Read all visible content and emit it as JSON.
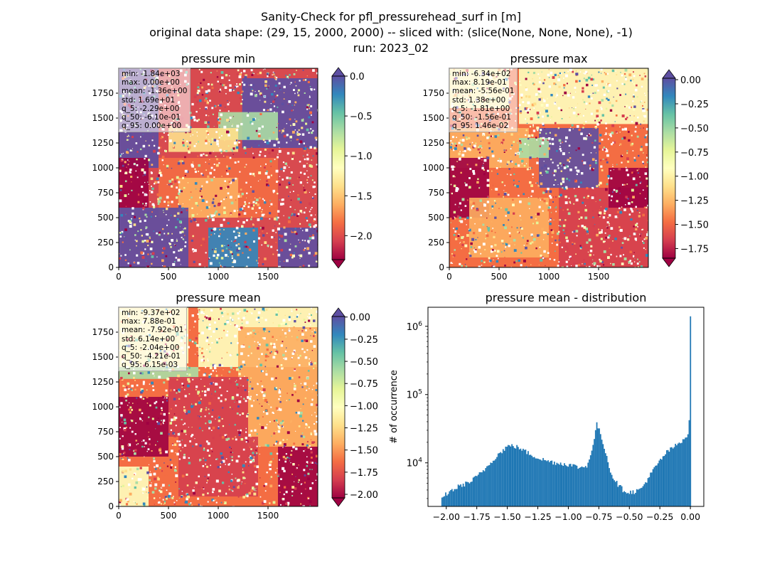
{
  "suptitle": {
    "line1": "Sanity-Check for pfl_pressurehead_surf in [m]",
    "line2": "original data shape: (29, 15, 2000, 2000) -- sliced with: (slice(None, None, None), -1)",
    "line3": "run: 2023_02"
  },
  "palette": {
    "spectral": [
      "#9e0142",
      "#d53e4f",
      "#f46d43",
      "#fdae61",
      "#fee08b",
      "#ffffbf",
      "#e6f598",
      "#abdda4",
      "#66c2a5",
      "#3288bd",
      "#5e4fa2"
    ],
    "hist_bar": "#1f77b4"
  },
  "panels": [
    {
      "title": "pressure min",
      "colorbar": {
        "ticks": [
          "0.0",
          "−0.5",
          "−1.0",
          "−1.5",
          "−2.0"
        ],
        "range": [
          -2.3,
          0.0
        ],
        "tick_values": [
          0.0,
          -0.5,
          -1.0,
          -1.5,
          -2.0
        ],
        "extend_top_color": "#5e4fa2",
        "extend_bottom_color": "#9e0142"
      },
      "stats": [
        "min: -1.84e+03",
        "max: 0.00e+00",
        "mean: -1.36e+00",
        "std: 1.69e+01",
        "q_5: -2.29e+00",
        "q_50: -6.10e-01",
        "q_95: 0.00e+00"
      ]
    },
    {
      "title": "pressure max",
      "colorbar": {
        "ticks": [
          "0.00",
          "−0.25",
          "−0.50",
          "−0.75",
          "−1.00",
          "−1.25",
          "−1.50",
          "−1.75"
        ],
        "range": [
          -1.85,
          0.015
        ],
        "tick_values": [
          0.0,
          -0.25,
          -0.5,
          -0.75,
          -1.0,
          -1.25,
          -1.5,
          -1.75
        ],
        "extend_top_color": "#5e4fa2",
        "extend_bottom_color": "#9e0142"
      },
      "stats": [
        "min: -6.34e+02",
        "max: 8.19e-01",
        "mean: -5.56e-01",
        "std: 1.38e+00",
        "q_5: -1.81e+00",
        "q_50: -1.56e-01",
        "q_95: 1.46e-02"
      ]
    },
    {
      "title": "pressure mean",
      "colorbar": {
        "ticks": [
          "0.00",
          "−0.25",
          "−0.50",
          "−0.75",
          "−1.00",
          "−1.25",
          "−1.50",
          "−1.75",
          "−2.00"
        ],
        "range": [
          -2.04,
          0.006
        ],
        "tick_values": [
          0.0,
          -0.25,
          -0.5,
          -0.75,
          -1.0,
          -1.25,
          -1.5,
          -1.75,
          -2.0
        ],
        "extend_top_color": "#5e4fa2",
        "extend_bottom_color": "#9e0142"
      },
      "stats": [
        "min: -9.37e+02",
        "max: 7.88e-01",
        "mean: -7.92e-01",
        "std: 6.14e+00",
        "q_5: -2.04e+00",
        "q_50: -4.21e-01",
        "q_95: 6.15e-03"
      ]
    }
  ],
  "map_axes": {
    "xticks": [
      "0",
      "500",
      "1000",
      "1500"
    ],
    "xtick_values": [
      0,
      500,
      1000,
      1500
    ],
    "yticks": [
      "0",
      "250",
      "500",
      "750",
      "1000",
      "1250",
      "1500",
      "1750"
    ],
    "ytick_values": [
      0,
      250,
      500,
      750,
      1000,
      1250,
      1500,
      1750
    ],
    "range": [
      0,
      2000
    ]
  },
  "chart_data": {
    "type": "bar",
    "title": "pressure mean - distribution",
    "xlabel": "",
    "ylabel": "# of occurrence",
    "yscale": "log",
    "ylim": [
      2300,
      1900000
    ],
    "xlim": [
      -2.15,
      0.11
    ],
    "xticks": [
      "−2.00",
      "−1.75",
      "−1.50",
      "−1.25",
      "−1.00",
      "−0.75",
      "−0.50",
      "−0.25",
      "0.00"
    ],
    "xtick_values": [
      -2.0,
      -1.75,
      -1.5,
      -1.25,
      -1.0,
      -0.75,
      -0.5,
      -0.25,
      0.0
    ],
    "yticks": [
      "10^4",
      "10^5",
      "10^6"
    ],
    "ytick_values": [
      10000,
      100000,
      1000000
    ],
    "profile_x": [
      -2.04,
      -2.0,
      -1.9,
      -1.8,
      -1.7,
      -1.6,
      -1.5,
      -1.45,
      -1.4,
      -1.3,
      -1.2,
      -1.1,
      -1.0,
      -0.9,
      -0.85,
      -0.8,
      -0.77,
      -0.74,
      -0.7,
      -0.65,
      -0.6,
      -0.55,
      -0.5,
      -0.45,
      -0.4,
      -0.3,
      -0.2,
      -0.1,
      -0.02,
      -0.01,
      0.0,
      0.006
    ],
    "profile_y": [
      2900,
      3500,
      4500,
      5300,
      7500,
      12000,
      17500,
      17800,
      16500,
      13000,
      11000,
      10000,
      9500,
      8500,
      9000,
      16000,
      38000,
      28000,
      16000,
      7000,
      5000,
      4000,
      3700,
      3800,
      4200,
      8000,
      14000,
      19000,
      26000,
      33000,
      1400000,
      1400000
    ]
  }
}
